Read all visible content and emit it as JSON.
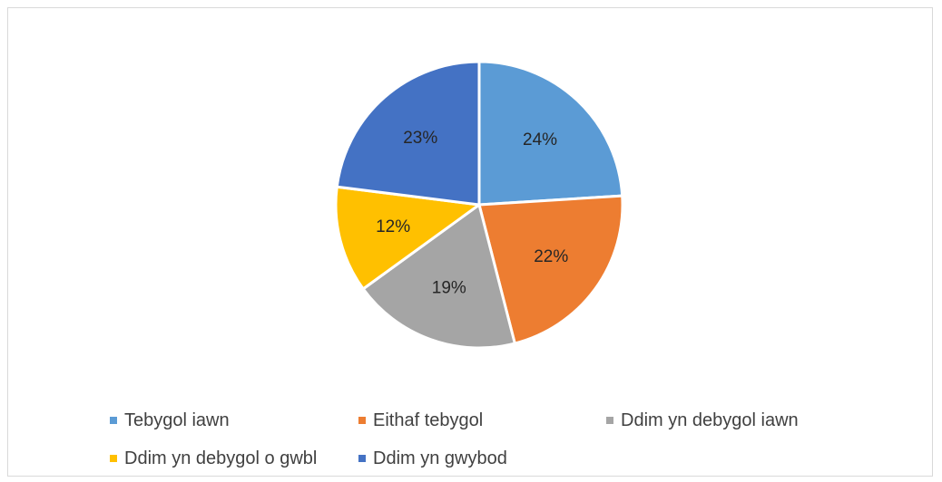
{
  "chart_data": {
    "type": "pie",
    "title": "",
    "categories": [
      "Tebygol iawn",
      "Eithaf tebygol",
      "Ddim yn debygol iawn",
      "Ddim yn debygol o gwbl",
      "Ddim yn gwybod"
    ],
    "values": [
      24,
      22,
      19,
      12,
      23
    ],
    "data_labels": [
      "24%",
      "22%",
      "19%",
      "12%",
      "23%"
    ],
    "colors": [
      "#5b9bd5",
      "#ed7d31",
      "#a5a5a5",
      "#ffc000",
      "#4472c4"
    ],
    "legend_position": "bottom",
    "start_angle": "12 o'clock, clockwise"
  }
}
